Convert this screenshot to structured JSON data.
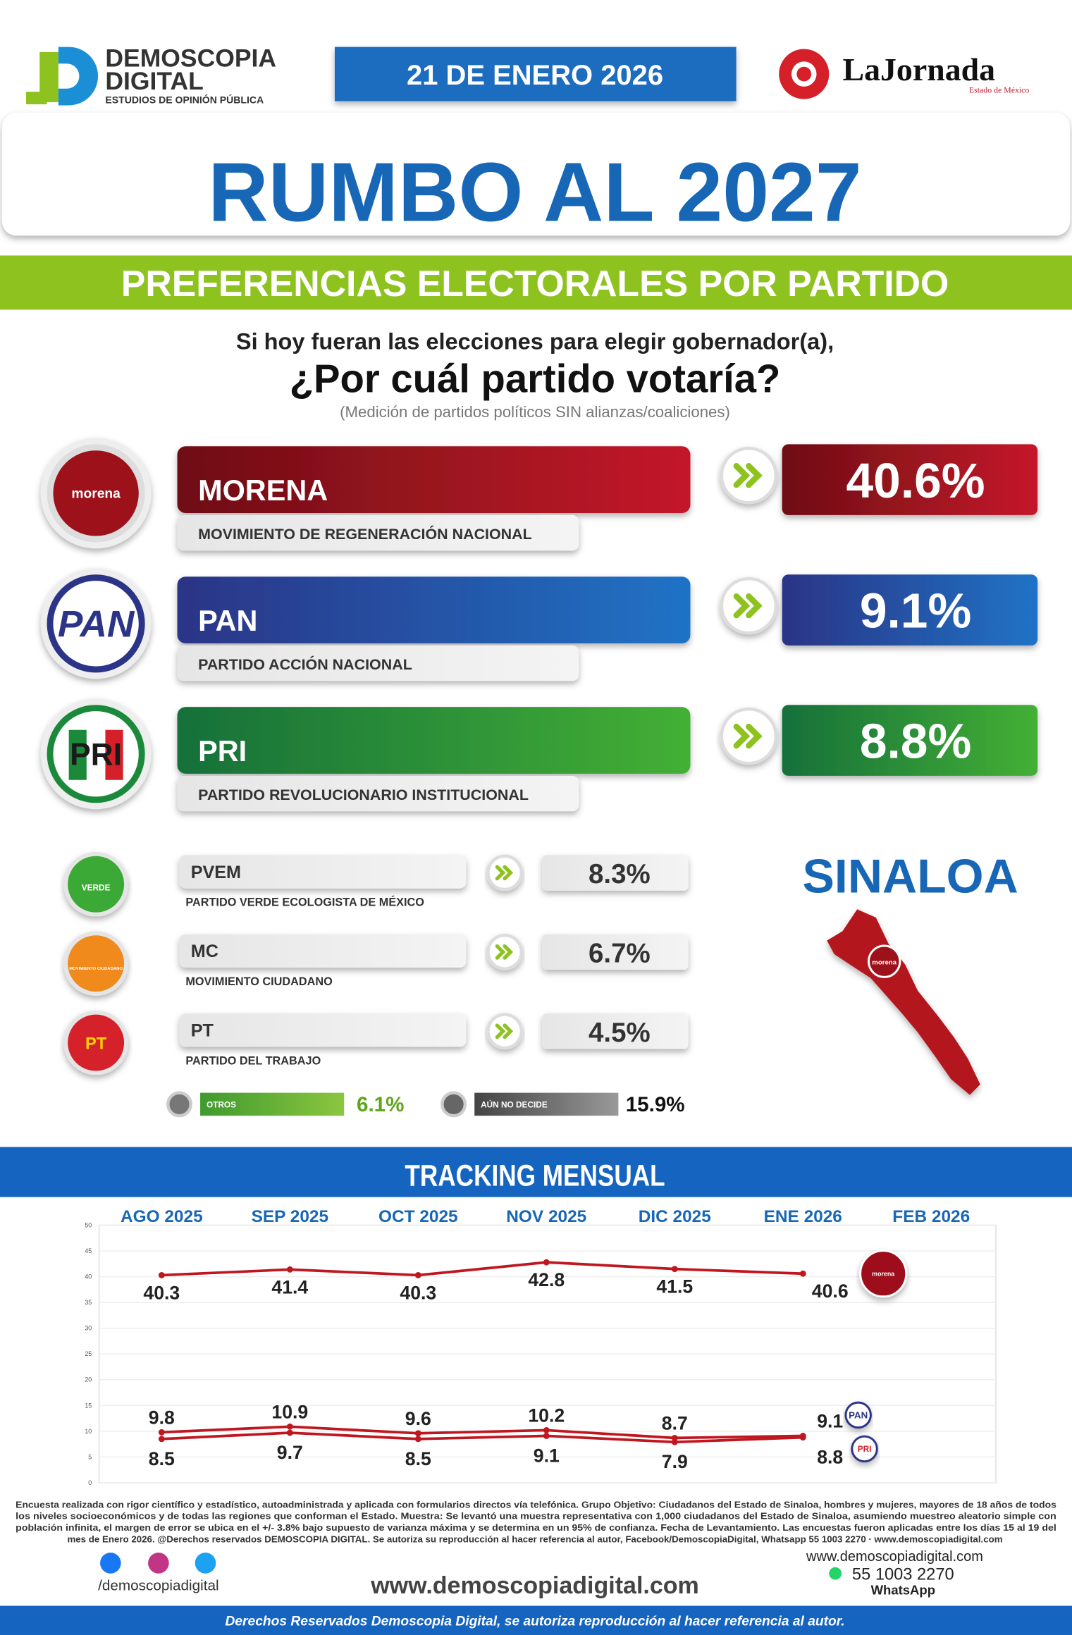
{
  "header": {
    "brand_line1": "DEMOSCOPIA",
    "brand_line2": "DIGITAL",
    "brand_tagline": "ESTUDIOS DE OPINIÓN PÚBLICA",
    "date": "21 DE ENERO 2026",
    "newspaper": "LaJornada",
    "newspaper_sub": "Estado de México"
  },
  "title": "RUMBO AL 2027",
  "subtitle": "PREFERENCIAS ELECTORALES POR PARTIDO",
  "question": {
    "line1": "Si hoy fueran las elecciones para elegir gobernador(a),",
    "line2": "¿Por cuál partido votaría?",
    "note": "(Medición de partidos políticos SIN alianzas/coaliciones)"
  },
  "main_parties": [
    {
      "logo": "morena",
      "name": "MORENA",
      "full_name": "MOVIMIENTO DE REGENERACIÓN NACIONAL",
      "value": "40.6%"
    },
    {
      "logo": "PAN",
      "name": "PAN",
      "full_name": "PARTIDO ACCIÓN NACIONAL",
      "value": "9.1%"
    },
    {
      "logo": "PRI",
      "name": "PRI",
      "full_name": "PARTIDO REVOLUCIONARIO INSTITUCIONAL",
      "value": "8.8%"
    }
  ],
  "minor_parties": [
    {
      "logo": "VERDE",
      "name": "PVEM",
      "full_name": "PARTIDO VERDE ECOLOGISTA DE MÉXICO",
      "value": "8.3%"
    },
    {
      "logo": "MOVIMIENTO CIUDADANO",
      "name": "MC",
      "full_name": "MOVIMIENTO CIUDADANO",
      "value": "6.7%"
    },
    {
      "logo": "PT",
      "name": "PT",
      "full_name": "PARTIDO DEL TRABAJO",
      "value": "4.5%"
    }
  ],
  "others": {
    "label": "OTROS",
    "value": "6.1%"
  },
  "undecided": {
    "label": "AÚN NO DECIDE",
    "value": "15.9%"
  },
  "state": {
    "name": "SINALOA",
    "leader_logo": "morena"
  },
  "tracking_title": "TRACKING MENSUAL",
  "chart_data": {
    "type": "line",
    "categories": [
      "AGO 2025",
      "SEP 2025",
      "OCT 2025",
      "NOV 2025",
      "DIC 2025",
      "ENE 2026",
      "FEB 2026"
    ],
    "series": [
      {
        "name": "morena",
        "color": "#c0161f",
        "values": [
          40.3,
          41.4,
          40.3,
          42.8,
          41.5,
          40.6,
          null
        ]
      },
      {
        "name": "PAN",
        "color": "#c0161f",
        "values": [
          9.8,
          10.9,
          9.6,
          10.2,
          8.7,
          9.1,
          null
        ]
      },
      {
        "name": "PRI",
        "color": "#c0161f",
        "values": [
          8.5,
          9.7,
          8.5,
          9.1,
          7.9,
          8.8,
          null
        ]
      }
    ],
    "ylim": [
      0,
      50
    ],
    "yticks": [
      0,
      5,
      10,
      15,
      20,
      25,
      30,
      35,
      40,
      45,
      50
    ],
    "grid": true
  },
  "footer": {
    "methodology": [
      "Encuesta realizada con rigor científico y estadístico, autoadministrada y aplicada con formularios directos vía telefónica. Grupo Objetivo: Ciudadanos del Estado de Sinaloa, hombres y mujeres, mayores de 18 años de todos",
      "los niveles socioeconómicos y de todas las regiones que conforman el Estado. Muestra: Se levantó una muestra representativa con 1,000 ciudadanos del Estado de Sinaloa, asumiendo muestreo aleatorio simple con",
      "población infinita, el margen de error se ubica en el +/- 3.8% bajo supuesto de varianza máxima y se determina en un 95% de confianza. Fecha de Levantamiento. Las encuestas fueron aplicadas entre los días 15 al 19 del",
      "mes de Enero 2026. @Derechos reservados DEMOSCOPIA DIGITAL. Se autoriza su reproducción al hacer referencia al autor, Facebook/DemoscopiaDigital, Whatsapp 55 1003 2270 · www.demoscopiadigital.com"
    ],
    "social_handle": "/demoscopiadigital",
    "website": "www.demoscopiadigital.com",
    "contact_website": "www.demoscopiadigital.com",
    "phone": "55 1003 2270",
    "whatsapp": "WhatsApp",
    "rights": "Derechos Reservados Demoscopia Digital, se autoriza reproducción al hacer referencia al autor."
  }
}
